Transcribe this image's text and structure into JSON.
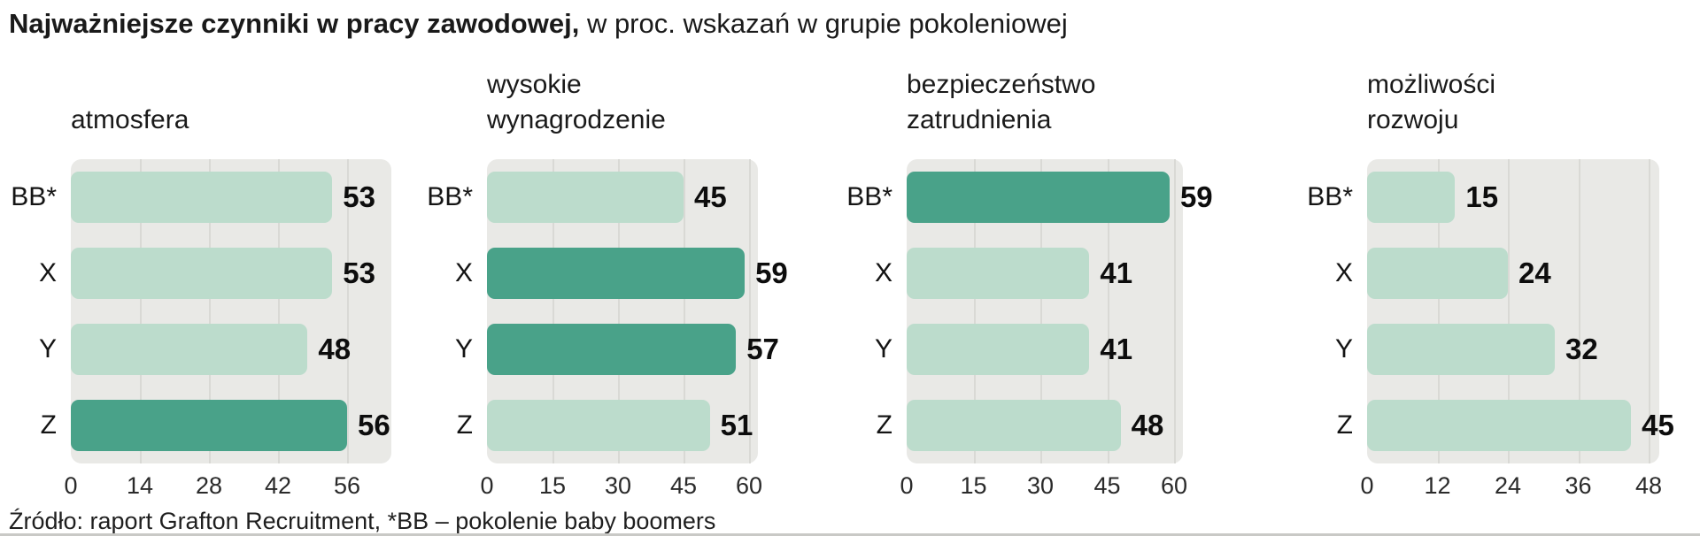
{
  "title": {
    "bold": "Najważniejsze czynniki w pracy zawodowej,",
    "regular": " w proc. wskazań w grupie pokoleniowej"
  },
  "source_note": "Źródło: raport Grafton Recruitment, *BB – pokolenie baby boomers",
  "colors": {
    "bar_light": "#bcdccc",
    "bar_dark": "#49a289",
    "panel_bg": "#e9e9e6",
    "gridline": "#d9d9d5",
    "text": "#1a1a1a"
  },
  "chart_data": [
    {
      "type": "bar",
      "orientation": "horizontal",
      "title": "atmosfera",
      "title_lines": [
        "atmosfera"
      ],
      "categories": [
        "BB*",
        "X",
        "Y",
        "Z"
      ],
      "values": [
        53,
        53,
        48,
        56
      ],
      "highlighted": [
        false,
        false,
        false,
        true
      ],
      "ticks": [
        0,
        14,
        28,
        42,
        56
      ],
      "xlim": [
        0,
        56
      ],
      "grid": true,
      "legend": false
    },
    {
      "type": "bar",
      "orientation": "horizontal",
      "title": "wysokie wynagrodzenie",
      "title_lines": [
        "wysokie",
        "wynagrodzenie"
      ],
      "categories": [
        "BB*",
        "X",
        "Y",
        "Z"
      ],
      "values": [
        45,
        59,
        57,
        51
      ],
      "highlighted": [
        false,
        true,
        true,
        false
      ],
      "ticks": [
        0,
        15,
        30,
        45,
        60
      ],
      "xlim": [
        0,
        60
      ],
      "grid": true,
      "legend": false
    },
    {
      "type": "bar",
      "orientation": "horizontal",
      "title": "bezpieczeństwo zatrudnienia",
      "title_lines": [
        "bezpieczeństwo",
        "zatrudnienia"
      ],
      "categories": [
        "BB*",
        "X",
        "Y",
        "Z"
      ],
      "values": [
        59,
        41,
        41,
        48
      ],
      "highlighted": [
        true,
        false,
        false,
        false
      ],
      "ticks": [
        0,
        15,
        30,
        45,
        60
      ],
      "xlim": [
        0,
        60
      ],
      "grid": true,
      "legend": false
    },
    {
      "type": "bar",
      "orientation": "horizontal",
      "title": "możliwości rozwoju",
      "title_lines": [
        "możliwości",
        "rozwoju"
      ],
      "categories": [
        "BB*",
        "X",
        "Y",
        "Z"
      ],
      "values": [
        15,
        24,
        32,
        45
      ],
      "highlighted": [
        false,
        false,
        false,
        false
      ],
      "ticks": [
        0,
        12,
        24,
        36,
        48
      ],
      "xlim": [
        0,
        48
      ],
      "grid": true,
      "legend": false
    }
  ]
}
